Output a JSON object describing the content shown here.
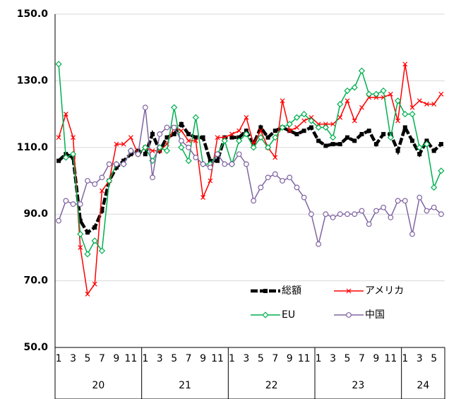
{
  "chart_data": {
    "type": "line",
    "categories": [
      "1",
      null,
      "3",
      null,
      "5",
      null,
      "7",
      null,
      "9",
      null,
      "11",
      null,
      "1",
      null,
      "3",
      null,
      "5",
      null,
      "7",
      null,
      "9",
      null,
      "11",
      null,
      "1",
      null,
      "3",
      null,
      "5",
      null,
      "7",
      null,
      "9",
      null,
      "11",
      null,
      "1",
      null,
      "3",
      null,
      "5",
      null,
      "7",
      null,
      "9",
      null,
      "11",
      null,
      "1",
      null,
      "3",
      null,
      "5",
      null
    ],
    "groups": [
      {
        "label": "20",
        "size": 12
      },
      {
        "label": "21",
        "size": 12
      },
      {
        "label": "22",
        "size": 12
      },
      {
        "label": "23",
        "size": 12
      },
      {
        "label": "24",
        "size": 6
      }
    ],
    "ylim": [
      50,
      150
    ],
    "yticks": [
      {
        "value": 50,
        "label": "50.0"
      },
      {
        "value": 70,
        "label": "70.0"
      },
      {
        "value": 90,
        "label": "90.0"
      },
      {
        "value": 110,
        "label": "110.0"
      },
      {
        "value": 130,
        "label": "130.0"
      },
      {
        "value": 150,
        "label": "150.0"
      }
    ],
    "grid": true,
    "legend": "lower center",
    "series": [
      {
        "name": "総額",
        "color": "#000000",
        "marker": "square",
        "line_style": "dashed",
        "values": [
          106,
          108,
          107,
          88,
          84.5,
          86,
          91,
          100,
          104,
          106,
          108,
          109,
          108,
          114,
          109,
          113,
          114,
          117,
          114,
          113,
          113,
          106,
          106,
          113,
          113,
          113,
          115,
          111,
          116,
          113,
          115,
          116,
          115,
          114,
          115,
          116,
          112,
          110.5,
          111,
          111,
          113,
          112,
          114,
          115,
          111,
          114,
          114,
          109,
          116,
          112,
          108,
          112,
          109,
          111
        ]
      },
      {
        "name": "アメリカ",
        "color": "#ff0000",
        "marker": "x",
        "line_style": "solid",
        "values": [
          113,
          120,
          113,
          80,
          66,
          69,
          97,
          100,
          111,
          111,
          113,
          108,
          110,
          109,
          109,
          111,
          116,
          115,
          112,
          112,
          95,
          100,
          113,
          113,
          114,
          115,
          119,
          111,
          115,
          110,
          107,
          124,
          115,
          116,
          118,
          119,
          117,
          117,
          117,
          119,
          124,
          118,
          122,
          125,
          125,
          125,
          126,
          118,
          135,
          122,
          124,
          123,
          123,
          126
        ]
      },
      {
        "name": "EU",
        "color": "#00b050",
        "marker": "diamond",
        "line_style": "solid",
        "values": [
          135,
          107,
          108,
          84,
          78,
          82,
          79,
          100,
          105,
          105,
          109,
          108,
          110,
          106,
          110,
          109,
          122,
          110,
          106,
          119,
          105,
          105,
          108,
          112,
          105,
          112,
          114,
          110,
          113,
          110,
          113,
          116,
          117,
          119,
          120,
          118,
          116,
          116,
          113,
          123,
          127,
          128,
          133,
          126,
          126,
          127,
          113,
          124,
          120,
          120,
          110,
          111,
          98,
          103
        ]
      },
      {
        "name": "中国",
        "color": "#8064a2",
        "marker": "circle",
        "line_style": "solid",
        "values": [
          88,
          94,
          93,
          93,
          100,
          99,
          101,
          105,
          105,
          105,
          109,
          108,
          122,
          101,
          114,
          116,
          116,
          112,
          110,
          107,
          105,
          104,
          108,
          105,
          105,
          108,
          105,
          94,
          98,
          101,
          102,
          100,
          101,
          98,
          95,
          90,
          81,
          90,
          89,
          90,
          90,
          90,
          91,
          87,
          91,
          92,
          89,
          94,
          94,
          84,
          95,
          91,
          92,
          90
        ]
      }
    ]
  }
}
